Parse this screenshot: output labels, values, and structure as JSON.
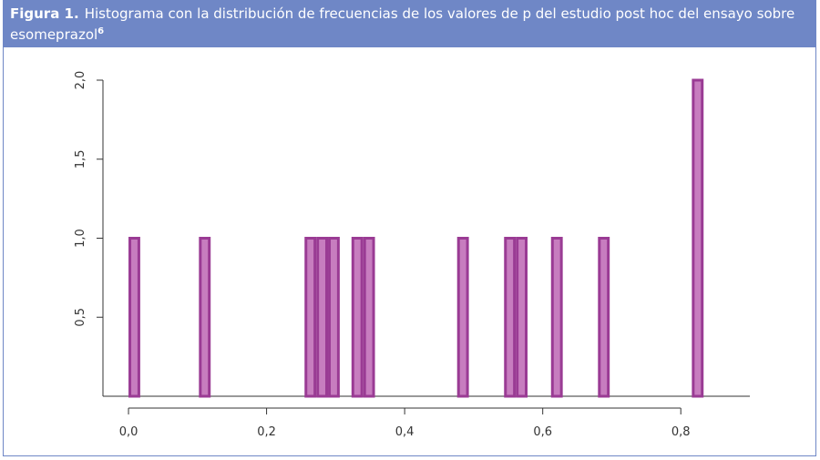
{
  "figure_label": "Figura 1.",
  "figure_title": "Histograma con la distribución de frecuencias de los valores de p del estudio post hoc del ensayo sobre esomeprazol",
  "figure_ref": "6",
  "chart_data": {
    "type": "histogram",
    "bins": [
      0,
      0.017,
      0.034,
      0.051,
      0.068,
      0.085,
      0.102,
      0.119,
      0.136,
      0.153,
      0.17,
      0.187,
      0.204,
      0.221,
      0.238,
      0.255,
      0.272,
      0.289,
      0.306,
      0.323,
      0.34,
      0.357,
      0.374,
      0.391,
      0.408,
      0.425,
      0.442,
      0.459,
      0.476,
      0.493,
      0.51,
      0.527,
      0.544,
      0.561,
      0.578,
      0.595,
      0.612,
      0.629,
      0.646,
      0.663,
      0.68,
      0.697,
      0.714,
      0.731,
      0.748,
      0.765,
      0.782,
      0.799,
      0.816,
      0.833,
      0.85
    ],
    "counts": [
      1,
      0,
      0,
      0,
      0,
      0,
      1,
      0,
      0,
      0,
      0,
      0,
      0,
      0,
      0,
      1,
      1,
      1,
      0,
      1,
      1,
      0,
      0,
      0,
      0,
      0,
      0,
      0,
      1,
      0,
      0,
      0,
      1,
      1,
      0,
      0,
      1,
      0,
      0,
      0,
      1,
      0,
      0,
      0,
      0,
      0,
      0,
      0,
      2,
      0
    ],
    "color": "#c77dbf",
    "edge_color": "#9a3b94",
    "xlim": [
      -0.037,
      0.9
    ],
    "ylim": [
      0,
      2
    ],
    "xticks": [
      {
        "value": 0,
        "label": "0,0"
      },
      {
        "value": 0.2,
        "label": "0,2"
      },
      {
        "value": 0.4,
        "label": "0,4"
      },
      {
        "value": 0.6,
        "label": "0,6"
      },
      {
        "value": 0.8,
        "label": "0,8"
      }
    ],
    "yticks": [
      {
        "value": 0.5,
        "label": "0,5"
      },
      {
        "value": 1,
        "label": "1,0"
      },
      {
        "value": 1.5,
        "label": "1,5"
      },
      {
        "value": 2,
        "label": "2,0"
      }
    ]
  }
}
